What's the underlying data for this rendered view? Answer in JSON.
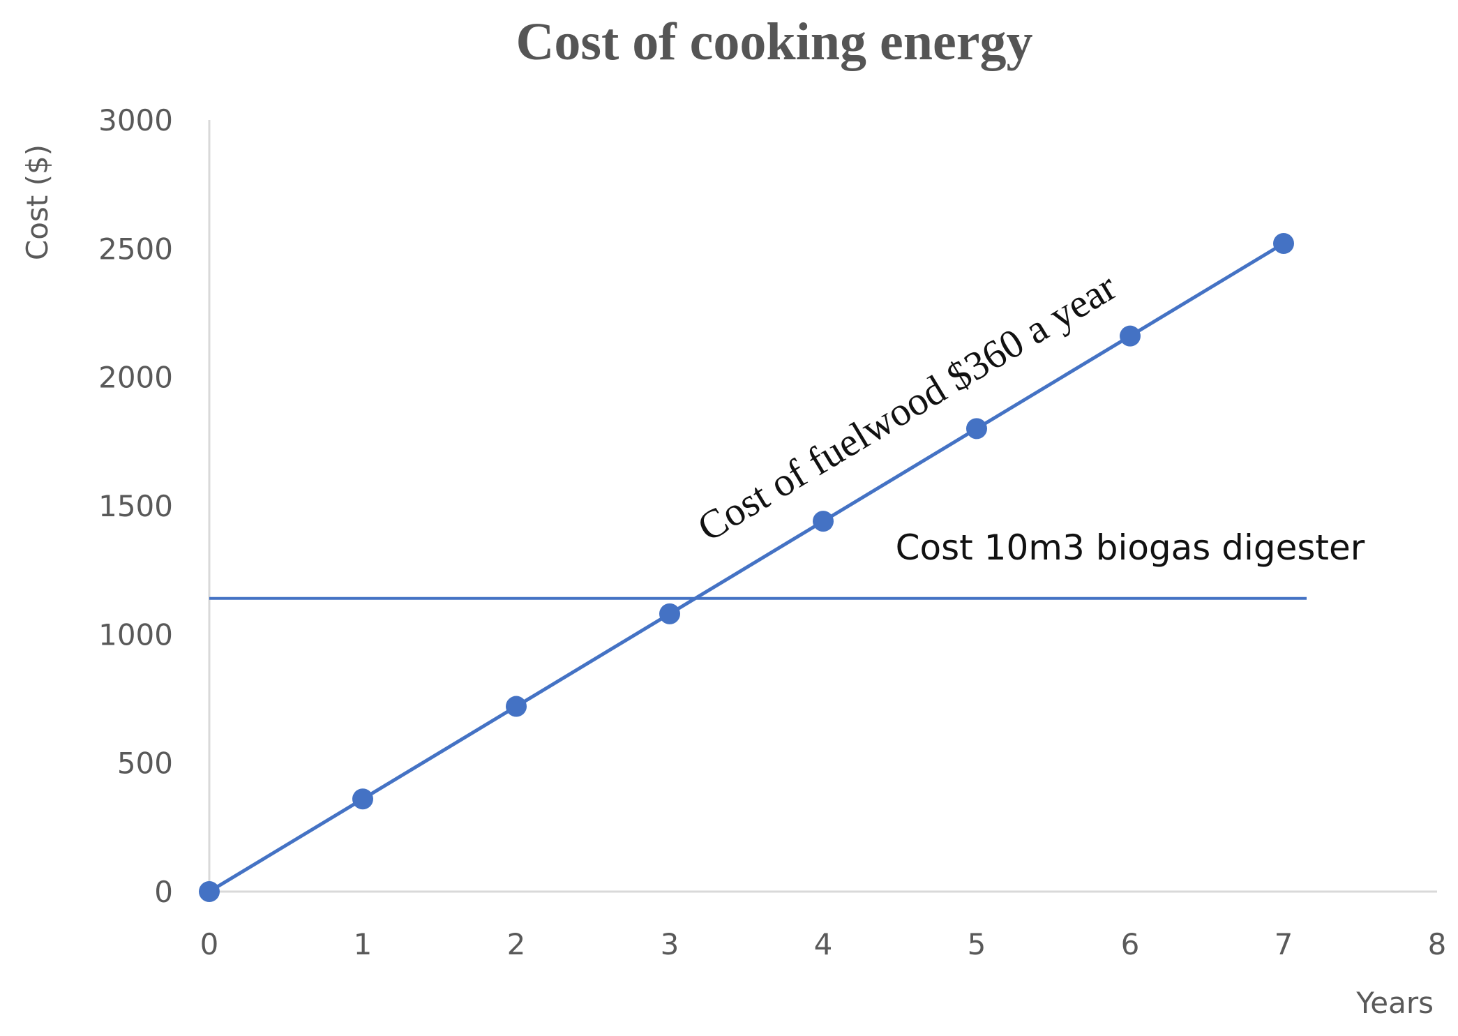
{
  "chart_data": {
    "type": "line",
    "title": "Cost of cooking energy",
    "xlabel": "Years",
    "ylabel": "Cost ($)",
    "xlim": [
      0,
      8
    ],
    "ylim": [
      0,
      3000
    ],
    "xticks": [
      0,
      1,
      2,
      3,
      4,
      5,
      6,
      7,
      8
    ],
    "yticks": [
      0,
      500,
      1000,
      1500,
      2000,
      2500,
      3000
    ],
    "grid": false,
    "series": [
      {
        "x": [
          0,
          1,
          2,
          3,
          4,
          5,
          6,
          7
        ],
        "values": [
          0,
          360,
          720,
          1080,
          1440,
          1800,
          2160,
          2520
        ],
        "color": "#4472C4",
        "markers": true
      }
    ],
    "reference_lines": [
      {
        "y": 1140,
        "x_range": [
          0,
          7.15
        ],
        "color": "#4472C4"
      }
    ],
    "annotations": [
      {
        "text": "Cost of fuelwood $360 a year",
        "style": "serif",
        "rotated": true
      },
      {
        "text": "Cost 10m3 biogas digester",
        "style": "sans",
        "rotated": false
      }
    ]
  }
}
